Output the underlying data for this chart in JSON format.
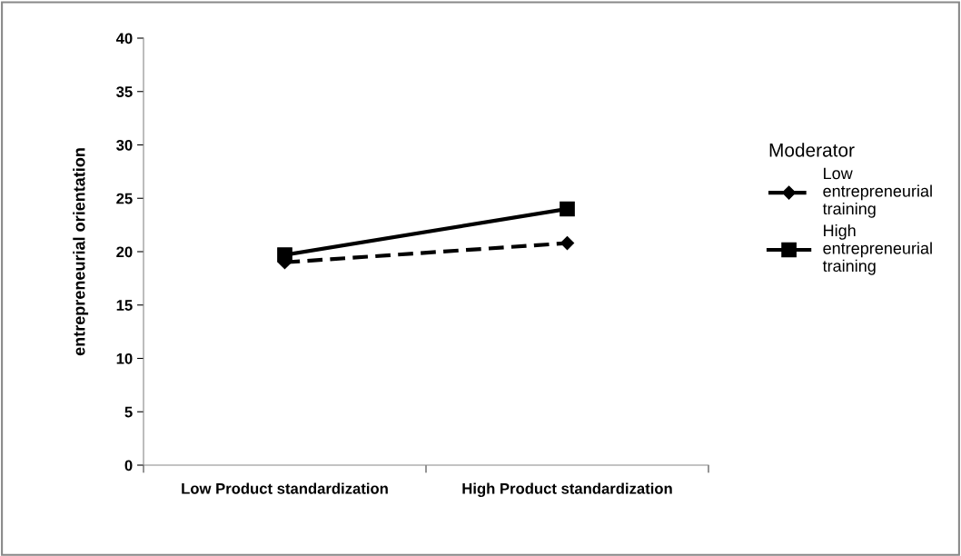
{
  "chart_data": {
    "type": "line",
    "ylabel": "entrepreneurial orientation",
    "legend_title": "Moderator",
    "categories": [
      "Low Product standardization",
      "High Product standardization"
    ],
    "series": [
      {
        "name": "Low entrepreneurial training",
        "color": "#000000",
        "values": [
          19.0,
          20.8
        ],
        "marker": "diamond",
        "line_style": "dashed"
      },
      {
        "name": "High entrepreneurial training",
        "color": "#000000",
        "values": [
          19.7,
          24.0
        ],
        "marker": "square",
        "line_style": "solid"
      }
    ],
    "ylim": [
      0,
      40
    ],
    "yticks": [
      0,
      5,
      10,
      15,
      20,
      25,
      30,
      35,
      40
    ],
    "grid": false,
    "legend": "right"
  }
}
